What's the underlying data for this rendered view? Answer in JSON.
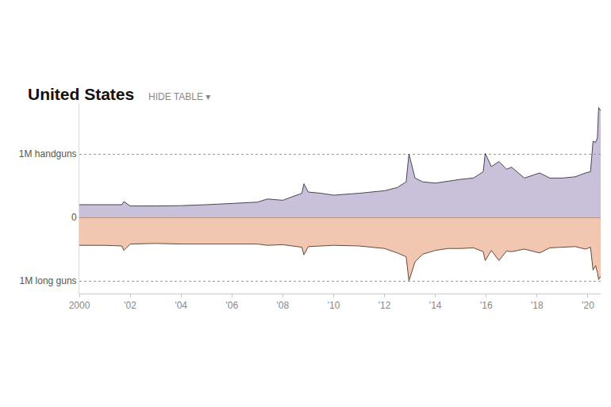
{
  "chart_data": {
    "type": "area",
    "title": "United States",
    "annotations": [
      "HIDE TABLE ▾"
    ],
    "x": [
      2000,
      2001,
      2001.67,
      2001.75,
      2002,
      2003,
      2004,
      2005,
      2006,
      2007,
      2007.4,
      2008,
      2008.75,
      2008.83,
      2009,
      2009.5,
      2010,
      2011,
      2012,
      2012.5,
      2012.85,
      2012.96,
      2013.2,
      2013.5,
      2014,
      2014.5,
      2015,
      2015.5,
      2015.88,
      2015.96,
      2016.2,
      2016.5,
      2016.8,
      2017,
      2017.5,
      2018.1,
      2018.5,
      2019,
      2019.5,
      2019.9,
      2020.1,
      2020.2,
      2020.3,
      2020.37,
      2020.42,
      2020.5
    ],
    "series": [
      {
        "name": "handguns",
        "color": "#a596c0",
        "values": [
          200000,
          195000,
          200000,
          250000,
          180000,
          180000,
          185000,
          200000,
          220000,
          240000,
          290000,
          270000,
          380000,
          530000,
          400000,
          380000,
          350000,
          380000,
          420000,
          470000,
          560000,
          1000000,
          620000,
          560000,
          540000,
          570000,
          600000,
          620000,
          720000,
          1010000,
          800000,
          880000,
          760000,
          790000,
          620000,
          700000,
          620000,
          620000,
          640000,
          700000,
          720000,
          1200000,
          1180000,
          1250000,
          1730000,
          1680000
        ]
      },
      {
        "name": "long guns",
        "color": "#e9a17f",
        "values": [
          -440000,
          -440000,
          -450000,
          -520000,
          -420000,
          -410000,
          -420000,
          -420000,
          -420000,
          -420000,
          -440000,
          -430000,
          -470000,
          -590000,
          -460000,
          -450000,
          -440000,
          -450000,
          -490000,
          -560000,
          -620000,
          -1000000,
          -700000,
          -580000,
          -520000,
          -490000,
          -490000,
          -480000,
          -540000,
          -680000,
          -520000,
          -680000,
          -530000,
          -540000,
          -500000,
          -560000,
          -480000,
          -470000,
          -460000,
          -500000,
          -470000,
          -830000,
          -760000,
          -870000,
          -980000,
          -930000
        ]
      }
    ],
    "xlim": [
      2000,
      2020.5
    ],
    "xticks": [
      2000,
      {
        "value": 2002,
        "label": "'02"
      },
      {
        "value": 2004,
        "label": "'04"
      },
      {
        "value": 2006,
        "label": "'06"
      },
      {
        "value": 2008,
        "label": "'08"
      },
      {
        "value": 2010,
        "label": "'10"
      },
      {
        "value": 2012,
        "label": "'12"
      },
      {
        "value": 2014,
        "label": "'14"
      },
      {
        "value": 2016,
        "label": "'16"
      },
      {
        "value": 2018,
        "label": "'18"
      },
      {
        "value": 2020,
        "label": "'20"
      }
    ],
    "ylim": [
      -1200000,
      1800000
    ],
    "yticks": [
      {
        "value": -1000000,
        "label": "1M long guns"
      },
      0,
      {
        "value": 1000000,
        "label": "1M handguns"
      }
    ],
    "grid": "y"
  }
}
